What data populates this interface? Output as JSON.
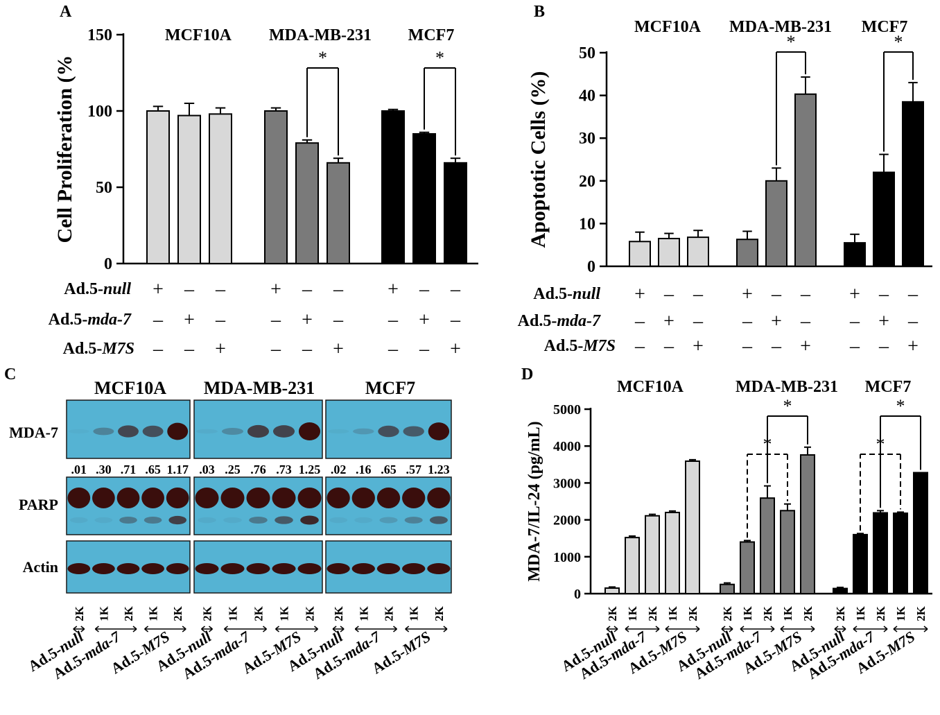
{
  "chart_data": [
    {
      "panel": "A",
      "type": "bar",
      "ylabel": "Cell Proliferation (%",
      "ylim": [
        0,
        150
      ],
      "yticks": [
        0,
        50,
        100,
        150
      ],
      "groups": [
        "MCF10A",
        "MDA-MB-231",
        "MCF7"
      ],
      "group_colors": [
        "#d8d8d8",
        "#7a7a7a",
        "#000000"
      ],
      "values": [
        [
          100,
          97,
          98
        ],
        [
          100,
          79,
          66
        ],
        [
          100,
          85,
          66
        ]
      ],
      "errors": [
        [
          3,
          8,
          4
        ],
        [
          2,
          2,
          3
        ],
        [
          1,
          1,
          3
        ]
      ],
      "significance": [
        {
          "group": 1,
          "from": 1,
          "to": 2,
          "label": "*"
        },
        {
          "group": 2,
          "from": 1,
          "to": 2,
          "label": "*"
        }
      ],
      "treatment_rows": [
        {
          "label_prefix": "Ad.5-",
          "label_italic": "null",
          "marks": [
            "+",
            "-",
            "-"
          ]
        },
        {
          "label_prefix": "Ad.5-",
          "label_italic": "mda-7",
          "marks": [
            "-",
            "+",
            "-"
          ]
        },
        {
          "label_prefix": "Ad.5-",
          "label_italic": "M7S",
          "marks": [
            "-",
            "-",
            "+"
          ]
        }
      ]
    },
    {
      "panel": "B",
      "type": "bar",
      "ylabel": "Apoptotic Cells (%)",
      "ylim": [
        0,
        50
      ],
      "yticks": [
        0,
        10,
        20,
        30,
        40,
        50
      ],
      "groups": [
        "MCF10A",
        "MDA-MB-231",
        "MCF7"
      ],
      "group_colors": [
        "#d8d8d8",
        "#7a7a7a",
        "#000000"
      ],
      "values": [
        [
          5.8,
          6.5,
          6.8
        ],
        [
          6.3,
          20,
          40.3
        ],
        [
          5.5,
          22,
          38.5
        ]
      ],
      "errors": [
        [
          2.2,
          1.2,
          1.6
        ],
        [
          1.9,
          3.0,
          4.0
        ],
        [
          2.0,
          4.2,
          4.5
        ]
      ],
      "significance": [
        {
          "group": 1,
          "from": 1,
          "to": 2,
          "label": "*"
        },
        {
          "group": 2,
          "from": 1,
          "to": 2,
          "label": "*"
        }
      ],
      "treatment_rows": [
        {
          "label_prefix": "Ad.5-",
          "label_italic": "null",
          "marks": [
            "+",
            "-",
            "-"
          ]
        },
        {
          "label_prefix": "Ad.5-",
          "label_italic": "mda-7",
          "marks": [
            "-",
            "+",
            "-"
          ]
        },
        {
          "label_prefix": "Ad.5-",
          "label_italic": "M7S",
          "marks": [
            "-",
            "-",
            "+"
          ]
        }
      ]
    },
    {
      "panel": "C",
      "type": "western_blot",
      "groups": [
        "MCF10A",
        "MDA-MB-231",
        "MCF7"
      ],
      "rows": [
        "MDA-7",
        "PARP",
        "Actin"
      ],
      "quantification": [
        [
          ".01",
          ".30",
          ".71",
          ".65",
          "1.17"
        ],
        [
          ".03",
          ".25",
          ".76",
          ".73",
          "1.25"
        ],
        [
          ".02",
          ".16",
          ".65",
          ".57",
          "1.23"
        ]
      ],
      "lane_doses": [
        "2K",
        "1K",
        "2K",
        "1K",
        "2K"
      ],
      "vectors": [
        {
          "prefix": "Ad.5-",
          "italic": "null"
        },
        {
          "prefix": "Ad.5-",
          "italic": "mda-7"
        },
        {
          "prefix": "Ad.5-",
          "italic": "M7S"
        }
      ],
      "blot_color": "#55b3d3",
      "band_color": "#3a0e0c"
    },
    {
      "panel": "D",
      "type": "bar",
      "ylabel": "MDA-7/IL-24 (pg/mL)",
      "ylim": [
        0,
        5000
      ],
      "yticks": [
        0,
        1000,
        2000,
        3000,
        4000,
        5000
      ],
      "groups": [
        "MCF10A",
        "MDA-MB-231",
        "MCF7"
      ],
      "group_colors": [
        "#d8d8d8",
        "#7a7a7a",
        "#000000"
      ],
      "values": [
        [
          150,
          1520,
          2110,
          2200,
          3590
        ],
        [
          250,
          1400,
          2590,
          2250,
          3760
        ],
        [
          140,
          1600,
          2190,
          2180,
          3280
        ]
      ],
      "errors": [
        [
          30,
          40,
          40,
          40,
          40
        ],
        [
          40,
          40,
          330,
          180,
          210
        ],
        [
          30,
          30,
          60,
          30,
          0
        ]
      ],
      "significance": [
        {
          "group": 1,
          "from": 2,
          "to": 4,
          "label": "*"
        },
        {
          "group": 1,
          "from": 1,
          "to": 3,
          "label": "*",
          "dashed": true
        },
        {
          "group": 2,
          "from": 2,
          "to": 4,
          "label": "*"
        },
        {
          "group": 2,
          "from": 1,
          "to": 3,
          "label": "*",
          "dashed": true
        }
      ],
      "lane_doses": [
        "2K",
        "1K",
        "2K",
        "1K",
        "2K"
      ],
      "vectors": [
        {
          "prefix": "Ad.5-",
          "italic": "null"
        },
        {
          "prefix": "Ad.5-",
          "italic": "mda-7"
        },
        {
          "prefix": "Ad.5-",
          "italic": "M7S"
        }
      ]
    }
  ]
}
